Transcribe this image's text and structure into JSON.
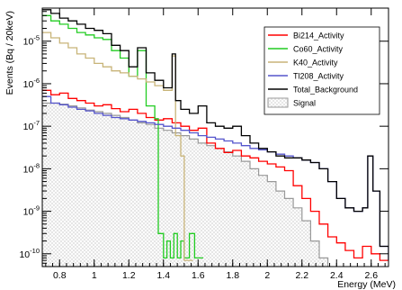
{
  "chart_data": {
    "type": "line",
    "step": true,
    "xlabel": "Energy (MeV)",
    "ylabel": "Events (Bq / 20keV)",
    "xlim": [
      0.7,
      2.7
    ],
    "ylim": [
      5e-11,
      6e-05
    ],
    "yscale": "log",
    "x_ticks": [
      0.8,
      1.0,
      1.2,
      1.4,
      1.6,
      1.8,
      2.0,
      2.2,
      2.4,
      2.6
    ],
    "x_tick_labels": [
      "0.8",
      "1",
      "1.2",
      "1.4",
      "1.6",
      "1.8",
      "2",
      "2.2",
      "2.4",
      "2.6"
    ],
    "y_ticks": [
      1e-10,
      1e-09,
      1e-08,
      1e-07,
      1e-06,
      1e-05
    ],
    "y_tick_labels": [
      {
        "base": "10",
        "exp": "-10"
      },
      {
        "base": "10",
        "exp": "-9"
      },
      {
        "base": "10",
        "exp": "-8"
      },
      {
        "base": "10",
        "exp": "-7"
      },
      {
        "base": "10",
        "exp": "-6"
      },
      {
        "base": "10",
        "exp": "-5"
      }
    ],
    "grid": false,
    "legend_position": "top-right",
    "series": [
      {
        "name": "Bi214_Activity",
        "color": "#ff0000",
        "kind": "line",
        "points": [
          [
            0.7,
            7e-07
          ],
          [
            0.75,
            5.5e-07
          ],
          [
            0.8,
            6e-07
          ],
          [
            0.85,
            4.5e-07
          ],
          [
            0.9,
            4e-07
          ],
          [
            0.95,
            3.5e-07
          ],
          [
            1.0,
            3e-07
          ],
          [
            1.05,
            3.2e-07
          ],
          [
            1.1,
            2.6e-07
          ],
          [
            1.15,
            2.2e-07
          ],
          [
            1.2,
            2.5e-07
          ],
          [
            1.25,
            2e-07
          ],
          [
            1.3,
            1.6e-07
          ],
          [
            1.35,
            1.4e-07
          ],
          [
            1.4,
            1.5e-07
          ],
          [
            1.45,
            1.2e-07
          ],
          [
            1.5,
            1e-07
          ],
          [
            1.55,
            8e-08
          ],
          [
            1.6,
            9e-08
          ],
          [
            1.65,
            4e-08
          ],
          [
            1.7,
            3e-08
          ],
          [
            1.75,
            2.4e-08
          ],
          [
            1.8,
            2.7e-08
          ],
          [
            1.85,
            2e-08
          ],
          [
            1.9,
            1.8e-08
          ],
          [
            1.95,
            1.5e-08
          ],
          [
            2.0,
            1.3e-08
          ],
          [
            2.05,
            1.1e-08
          ],
          [
            2.1,
            9e-09
          ],
          [
            2.15,
            4e-09
          ],
          [
            2.2,
            2e-09
          ],
          [
            2.25,
            1e-09
          ],
          [
            2.3,
            5e-10
          ],
          [
            2.35,
            2.5e-10
          ],
          [
            2.4,
            1.8e-10
          ],
          [
            2.45,
            1.2e-10
          ],
          [
            2.5,
            8e-11
          ],
          [
            2.55,
            1.5e-10
          ],
          [
            2.6,
            1e-10
          ],
          [
            2.65,
            7e-11
          ]
        ]
      },
      {
        "name": "Co60_Activity",
        "color": "#22cc22",
        "kind": "line",
        "points": [
          [
            0.7,
            4e-05
          ],
          [
            0.75,
            3e-05
          ],
          [
            0.8,
            2.5e-05
          ],
          [
            0.85,
            2e-05
          ],
          [
            0.9,
            1.6e-05
          ],
          [
            0.95,
            1.4e-05
          ],
          [
            1.0,
            1.2e-05
          ],
          [
            1.05,
            1.1e-05
          ],
          [
            1.1,
            6e-06
          ],
          [
            1.15,
            4e-06
          ],
          [
            1.2,
            1.5e-06
          ],
          [
            1.25,
            6e-06
          ],
          [
            1.3,
            3e-07
          ],
          [
            1.35,
            1.5e-07
          ],
          [
            1.37,
            3e-10
          ],
          [
            1.4,
            8e-11
          ],
          [
            1.42,
            2e-10
          ],
          [
            1.44,
            8e-11
          ],
          [
            1.46,
            3e-10
          ],
          [
            1.48,
            8e-11
          ],
          [
            1.5,
            2e-10
          ],
          [
            1.52,
            8e-11
          ],
          [
            1.55,
            3e-10
          ],
          [
            1.58,
            8e-11
          ]
        ]
      },
      {
        "name": "K40_Activity",
        "color": "#c8b478",
        "kind": "line",
        "points": [
          [
            0.7,
            1.6e-05
          ],
          [
            0.75,
            1.2e-05
          ],
          [
            0.8,
            9e-06
          ],
          [
            0.85,
            7e-06
          ],
          [
            0.9,
            5e-06
          ],
          [
            0.95,
            4e-06
          ],
          [
            1.0,
            3e-06
          ],
          [
            1.05,
            2.5e-06
          ],
          [
            1.1,
            2e-06
          ],
          [
            1.15,
            1.8e-06
          ],
          [
            1.2,
            1.5e-06
          ],
          [
            1.25,
            1.3e-06
          ],
          [
            1.3,
            1.1e-06
          ],
          [
            1.35,
            9e-07
          ],
          [
            1.4,
            7e-07
          ],
          [
            1.45,
            4.5e-06
          ],
          [
            1.47,
            6e-08
          ],
          [
            1.5,
            2e-08
          ],
          [
            1.52,
            7e-11
          ]
        ]
      },
      {
        "name": "Tl208_Activity",
        "color": "#5555cc",
        "kind": "line",
        "points": [
          [
            0.7,
            5e-07
          ],
          [
            0.75,
            3.5e-07
          ],
          [
            0.8,
            3.2e-07
          ],
          [
            0.85,
            2.8e-07
          ],
          [
            0.9,
            2.5e-07
          ],
          [
            0.95,
            2.3e-07
          ],
          [
            1.0,
            2e-07
          ],
          [
            1.05,
            1.8e-07
          ],
          [
            1.1,
            1.6e-07
          ],
          [
            1.15,
            1.5e-07
          ],
          [
            1.2,
            1.4e-07
          ],
          [
            1.25,
            1.3e-07
          ],
          [
            1.3,
            1.2e-07
          ],
          [
            1.35,
            1.1e-07
          ],
          [
            1.4,
            1e-07
          ],
          [
            1.45,
            9e-08
          ],
          [
            1.5,
            8e-08
          ],
          [
            1.55,
            7e-08
          ],
          [
            1.6,
            6e-08
          ],
          [
            1.65,
            5.5e-08
          ],
          [
            1.7,
            5e-08
          ],
          [
            1.75,
            4.5e-08
          ],
          [
            1.8,
            4e-08
          ],
          [
            1.85,
            3.5e-08
          ],
          [
            1.9,
            3e-08
          ],
          [
            1.95,
            2.8e-08
          ],
          [
            2.0,
            2.5e-08
          ],
          [
            2.05,
            2.2e-08
          ],
          [
            2.1,
            2e-08
          ],
          [
            2.15,
            1.8e-08
          ],
          [
            2.2,
            1.6e-08
          ],
          [
            2.25,
            1.4e-08
          ],
          [
            2.3,
            1e-08
          ],
          [
            2.35,
            5e-09
          ],
          [
            2.4,
            2e-09
          ],
          [
            2.45,
            1.2e-09
          ],
          [
            2.5,
            1e-09
          ],
          [
            2.55,
            1.2e-09
          ],
          [
            2.58,
            2e-08
          ],
          [
            2.61,
            3e-09
          ],
          [
            2.65,
            1.5e-10
          ],
          [
            2.7,
            7e-11
          ]
        ]
      },
      {
        "name": "Total_Background",
        "color": "#000000",
        "kind": "line",
        "points": [
          [
            0.7,
            5.5e-05
          ],
          [
            0.75,
            4.5e-05
          ],
          [
            0.8,
            3.5e-05
          ],
          [
            0.85,
            3e-05
          ],
          [
            0.9,
            2.5e-05
          ],
          [
            0.95,
            2e-05
          ],
          [
            1.0,
            1.8e-05
          ],
          [
            1.05,
            1.5e-05
          ],
          [
            1.1,
            8e-06
          ],
          [
            1.15,
            6e-06
          ],
          [
            1.2,
            2.5e-06
          ],
          [
            1.25,
            7e-06
          ],
          [
            1.3,
            1.8e-06
          ],
          [
            1.35,
            1.2e-06
          ],
          [
            1.4,
            8e-07
          ],
          [
            1.45,
            5e-06
          ],
          [
            1.47,
            4e-07
          ],
          [
            1.5,
            2.5e-07
          ],
          [
            1.55,
            2e-07
          ],
          [
            1.6,
            3e-07
          ],
          [
            1.65,
            1.2e-07
          ],
          [
            1.7,
            1e-07
          ],
          [
            1.75,
            9e-08
          ],
          [
            1.8,
            1e-07
          ],
          [
            1.85,
            6e-08
          ],
          [
            1.9,
            4e-08
          ],
          [
            1.95,
            3e-08
          ],
          [
            2.0,
            2.5e-08
          ],
          [
            2.05,
            2e-08
          ],
          [
            2.1,
            1.8e-08
          ],
          [
            2.15,
            1.8e-08
          ],
          [
            2.2,
            1.6e-08
          ],
          [
            2.25,
            1.4e-08
          ],
          [
            2.3,
            1e-08
          ],
          [
            2.35,
            5e-09
          ],
          [
            2.4,
            2e-09
          ],
          [
            2.45,
            1.2e-09
          ],
          [
            2.5,
            1e-09
          ],
          [
            2.55,
            1.2e-09
          ],
          [
            2.58,
            2e-08
          ],
          [
            2.61,
            3e-09
          ],
          [
            2.65,
            1.5e-10
          ],
          [
            2.7,
            7e-11
          ]
        ]
      },
      {
        "name": "Signal",
        "color": "#999999",
        "kind": "filled",
        "points": [
          [
            0.7,
            3.5e-07
          ],
          [
            0.75,
            3.5e-07
          ],
          [
            0.8,
            3.3e-07
          ],
          [
            0.85,
            3e-07
          ],
          [
            0.9,
            2.7e-07
          ],
          [
            0.95,
            2.4e-07
          ],
          [
            1.0,
            2.2e-07
          ],
          [
            1.05,
            2e-07
          ],
          [
            1.1,
            1.8e-07
          ],
          [
            1.15,
            1.6e-07
          ],
          [
            1.2,
            1.4e-07
          ],
          [
            1.25,
            1.2e-07
          ],
          [
            1.3,
            1.1e-07
          ],
          [
            1.35,
            9e-08
          ],
          [
            1.4,
            8e-08
          ],
          [
            1.45,
            7e-08
          ],
          [
            1.5,
            6e-08
          ],
          [
            1.55,
            5e-08
          ],
          [
            1.6,
            4e-08
          ],
          [
            1.65,
            3.5e-08
          ],
          [
            1.7,
            3e-08
          ],
          [
            1.75,
            2.5e-08
          ],
          [
            1.8,
            2e-08
          ],
          [
            1.85,
            1.5e-08
          ],
          [
            1.9,
            1e-08
          ],
          [
            1.95,
            7e-09
          ],
          [
            2.0,
            5e-09
          ],
          [
            2.05,
            3e-09
          ],
          [
            2.1,
            2e-09
          ],
          [
            2.15,
            1.2e-09
          ],
          [
            2.2,
            6e-10
          ],
          [
            2.25,
            2e-10
          ],
          [
            2.3,
            8e-11
          ]
        ]
      }
    ]
  }
}
